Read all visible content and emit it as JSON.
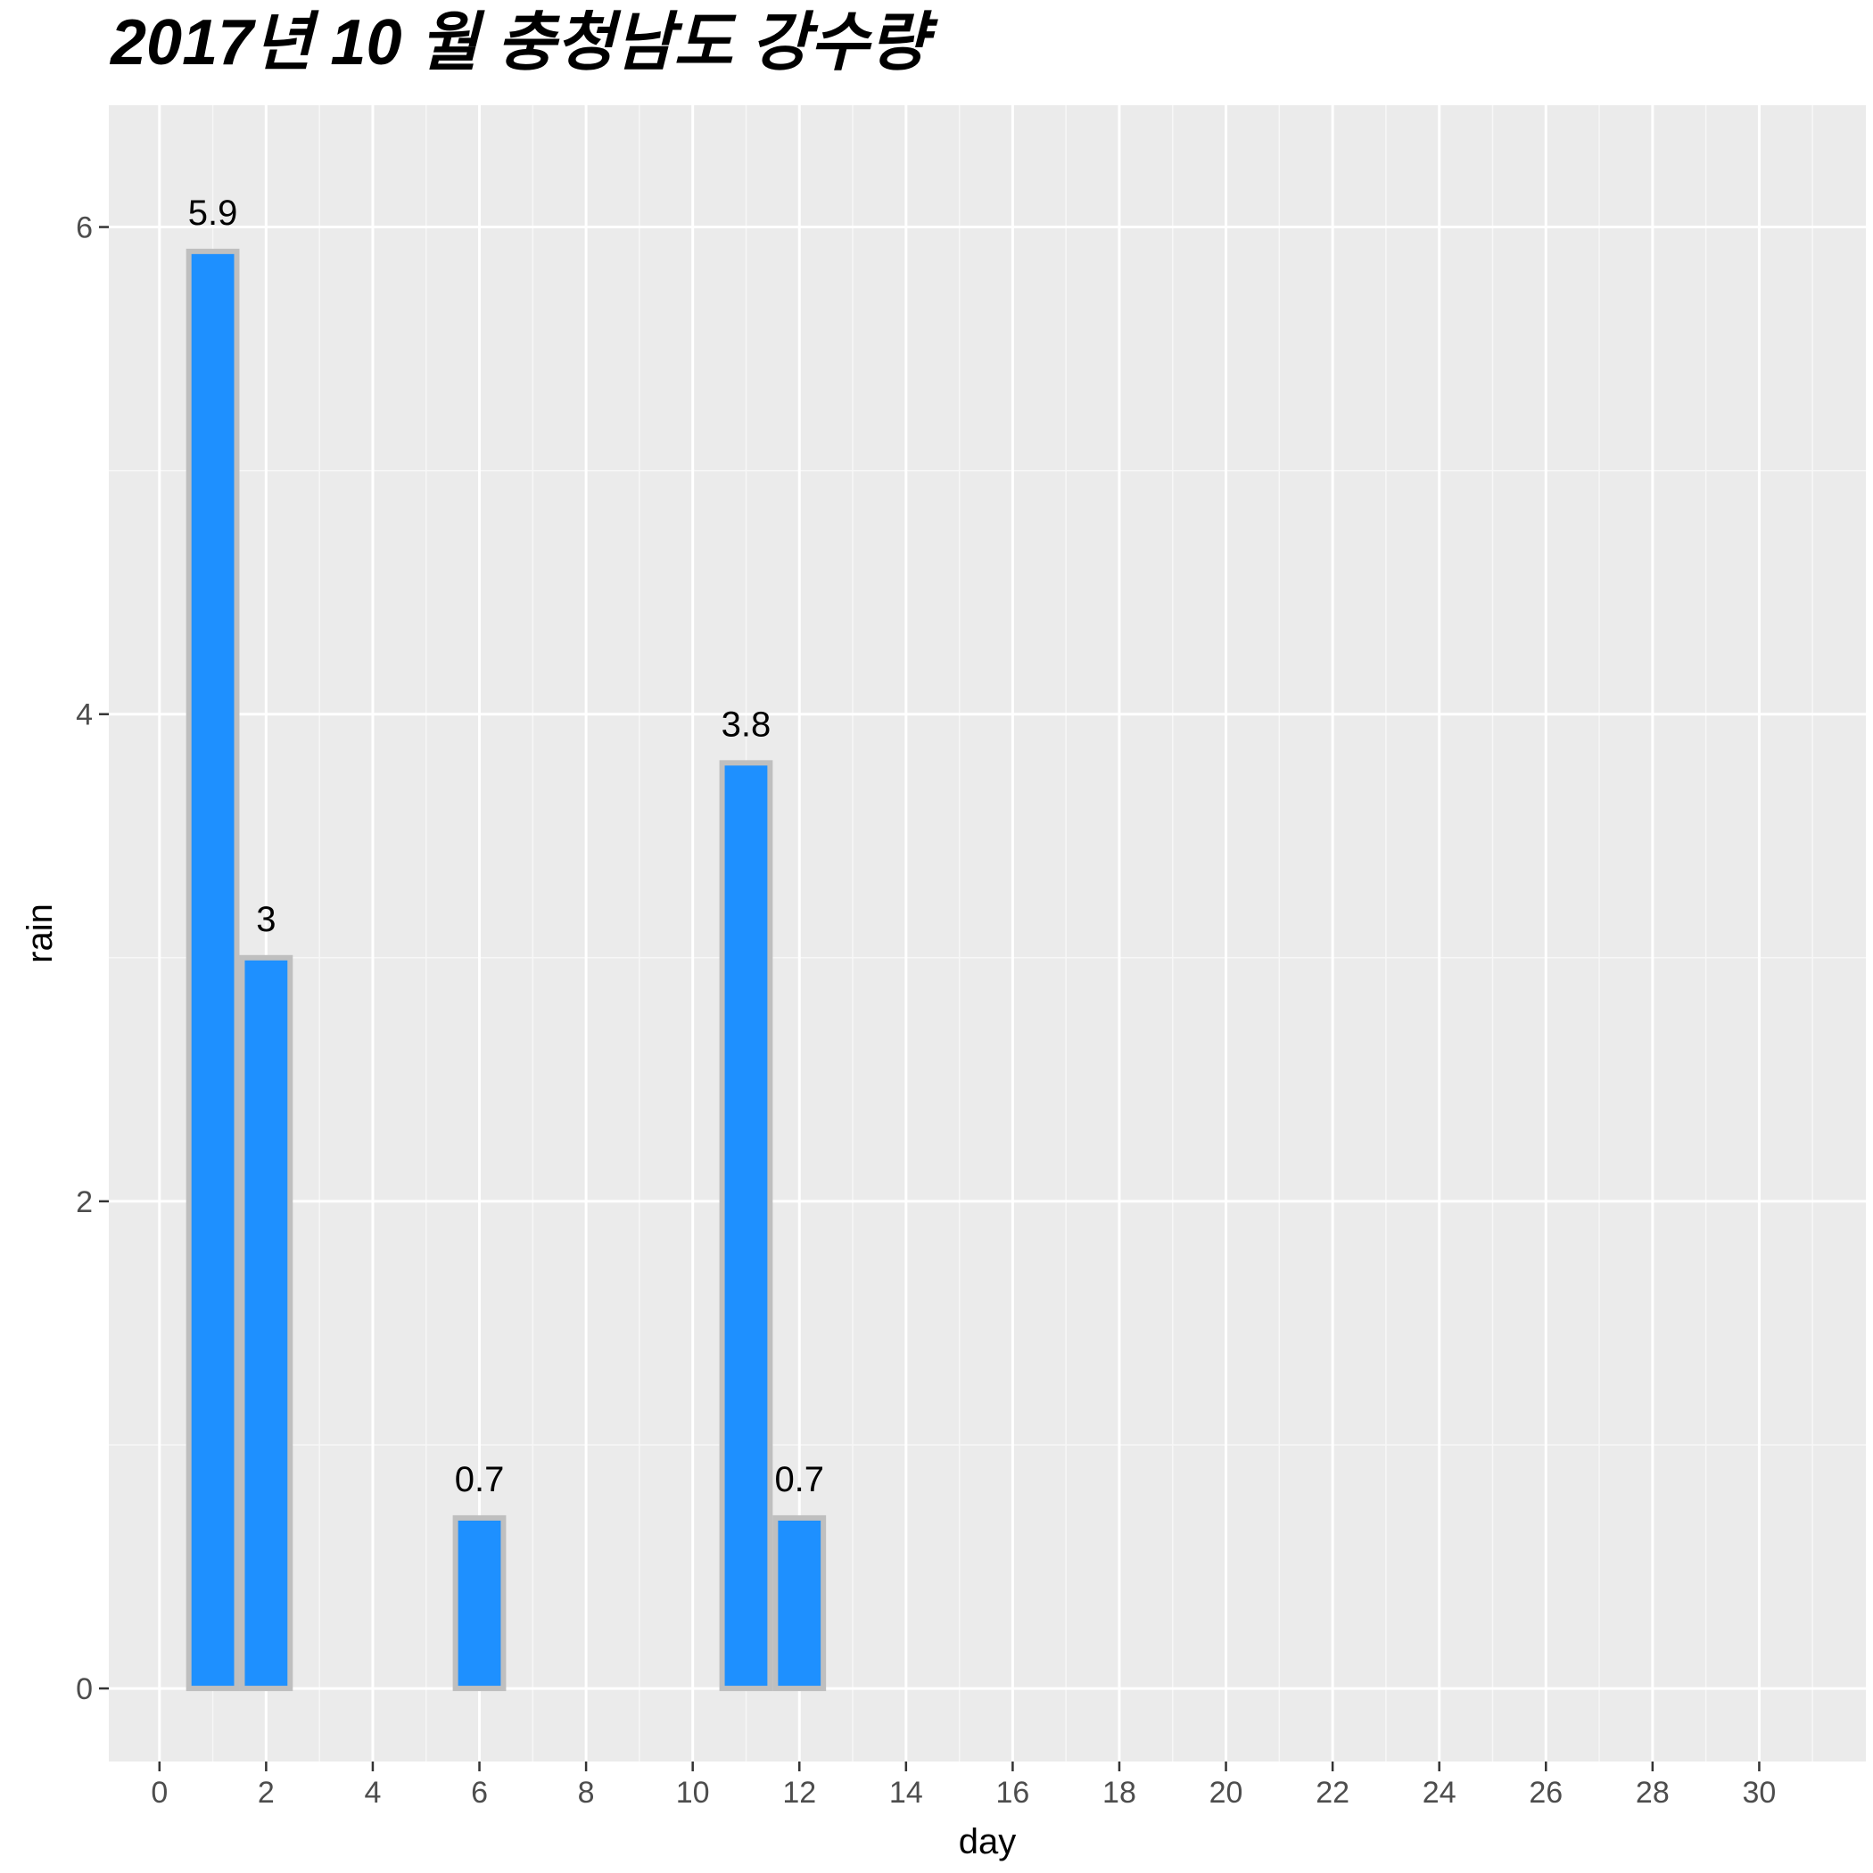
{
  "chart_data": {
    "type": "bar",
    "title": "2017년 10 월 충청남도 강수량",
    "xlabel": "day",
    "ylabel": "rain",
    "x": [
      1,
      2,
      6,
      11,
      12
    ],
    "values": [
      5.9,
      3,
      0.7,
      3.8,
      0.7
    ],
    "data_labels": [
      "5.9",
      "3",
      "0.7",
      "3.8",
      "0.7"
    ],
    "xlim": [
      -0.95,
      32.0
    ],
    "ylim": [
      -0.3,
      6.5
    ],
    "x_ticks": [
      0,
      2,
      4,
      6,
      8,
      10,
      12,
      14,
      16,
      18,
      20,
      22,
      24,
      26,
      28,
      30
    ],
    "x_tick_labels": [
      "0",
      "2",
      "4",
      "6",
      "8",
      "10",
      "12",
      "14",
      "16",
      "18",
      "20",
      "22",
      "24",
      "26",
      "28",
      "30"
    ],
    "x_minor_ticks": [
      -1,
      1,
      3,
      5,
      7,
      9,
      11,
      13,
      15,
      17,
      19,
      21,
      23,
      25,
      27,
      29,
      31
    ],
    "y_ticks": [
      0,
      2,
      4,
      6
    ],
    "y_tick_labels": [
      "0",
      "2",
      "4",
      "6"
    ],
    "y_minor_ticks": [
      1,
      3,
      5
    ],
    "grid": true,
    "legend": "none",
    "colors": {
      "bar_fill": "#1e90ff",
      "bar_outline": "#bfbfbf",
      "panel_background": "#ebebeb",
      "grid_major": "#ffffff",
      "grid_minor": "#f7f7f7",
      "tick_text": "#4d4d4d",
      "axis_tick": "#333333"
    }
  }
}
